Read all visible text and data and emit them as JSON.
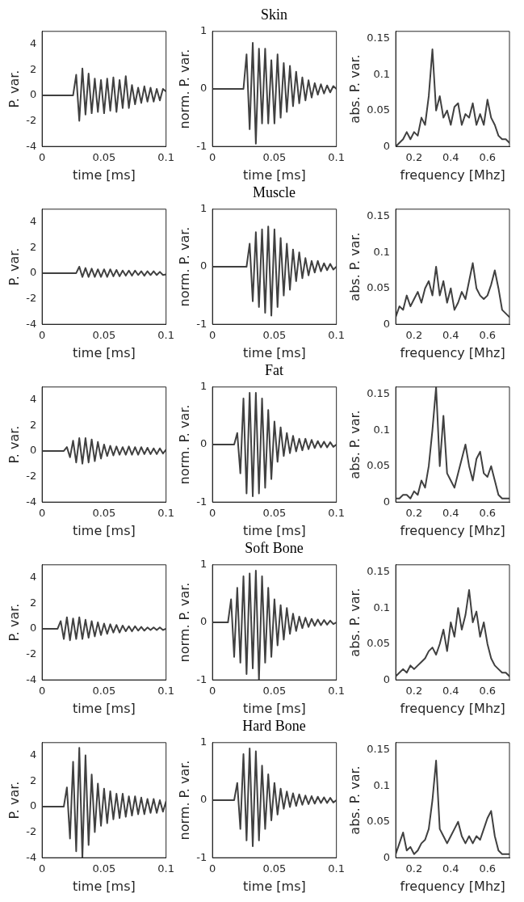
{
  "chart_data": [
    {
      "type": "line",
      "xlabel": "time [ms]",
      "ylabel": "P. var.",
      "xlim": [
        0,
        0.1
      ],
      "ylim": [
        -4,
        5
      ],
      "xticks": [
        0,
        0.05,
        0.1
      ],
      "yticks": [
        -4,
        -2,
        0,
        2,
        4
      ],
      "grid": false,
      "legend": false,
      "marker": "none",
      "x": [
        0,
        0.0125,
        0.015,
        0.0175,
        0.02,
        0.0225,
        0.025,
        0.0275,
        0.03,
        0.0325,
        0.035,
        0.0375,
        0.04,
        0.0425,
        0.045,
        0.0475,
        0.05,
        0.0525,
        0.055,
        0.0575,
        0.06,
        0.0625,
        0.065,
        0.0675,
        0.07,
        0.0725,
        0.075,
        0.0775,
        0.08,
        0.0825,
        0.085,
        0.0875,
        0.09,
        0.0925,
        0.095,
        0.0975,
        0.1
      ],
      "series": [
        {
          "color": "#404040",
          "values": [
            0,
            0,
            0,
            0,
            0,
            0,
            0,
            1.6,
            -2.0,
            2.1,
            -1.5,
            1.7,
            -1.4,
            1.3,
            -1.3,
            1.2,
            -1.4,
            1.3,
            -1.2,
            1.4,
            -1.3,
            1.2,
            -1.0,
            1.5,
            -1.0,
            0.8,
            -0.7,
            0.6,
            -0.6,
            0.7,
            -0.5,
            0.6,
            -0.5,
            0.5,
            -0.4,
            0.5,
            0.3
          ]
        }
      ]
    },
    {
      "type": "line",
      "title": "Skin",
      "xlabel": "time [ms]",
      "ylabel": "norm. P. var.",
      "xlim": [
        0,
        0.1
      ],
      "ylim": [
        -1,
        1
      ],
      "xticks": [
        0,
        0.05,
        0.1
      ],
      "yticks": [
        -1,
        0,
        1
      ],
      "grid": false,
      "legend": false,
      "marker": "none",
      "x": [
        0,
        0.0125,
        0.015,
        0.0175,
        0.02,
        0.0225,
        0.025,
        0.0275,
        0.03,
        0.0325,
        0.035,
        0.0375,
        0.04,
        0.0425,
        0.045,
        0.0475,
        0.05,
        0.0525,
        0.055,
        0.0575,
        0.06,
        0.0625,
        0.065,
        0.0675,
        0.07,
        0.0725,
        0.075,
        0.0775,
        0.08,
        0.0825,
        0.085,
        0.0875,
        0.09,
        0.0925,
        0.095,
        0.0975,
        0.1
      ],
      "series": [
        {
          "color": "#404040",
          "values": [
            0,
            0,
            0,
            0,
            0,
            0,
            0,
            0.6,
            -0.7,
            0.8,
            -0.95,
            0.7,
            -0.6,
            0.7,
            -0.6,
            0.5,
            -0.6,
            0.6,
            -0.5,
            0.45,
            -0.4,
            0.4,
            -0.3,
            0.3,
            -0.25,
            0.2,
            -0.2,
            0.15,
            -0.15,
            0.1,
            -0.1,
            0.08,
            -0.08,
            0.06,
            -0.06,
            0.05,
            0
          ]
        }
      ]
    },
    {
      "type": "line",
      "xlabel": "frequency [Mhz]",
      "ylabel": "abs. P. var.",
      "xlim": [
        0.1,
        0.72
      ],
      "ylim": [
        0,
        0.16
      ],
      "xticks": [
        0.2,
        0.4,
        0.6
      ],
      "yticks": [
        0,
        0.05,
        0.1,
        0.15
      ],
      "grid": false,
      "legend": false,
      "marker": "none",
      "x": [
        0.1,
        0.12,
        0.14,
        0.16,
        0.18,
        0.2,
        0.22,
        0.24,
        0.26,
        0.28,
        0.3,
        0.32,
        0.34,
        0.36,
        0.38,
        0.4,
        0.42,
        0.44,
        0.46,
        0.48,
        0.5,
        0.52,
        0.54,
        0.56,
        0.58,
        0.6,
        0.62,
        0.64,
        0.66,
        0.68,
        0.7,
        0.72
      ],
      "series": [
        {
          "color": "#404040",
          "values": [
            0,
            0.005,
            0.01,
            0.02,
            0.01,
            0.02,
            0.015,
            0.04,
            0.03,
            0.07,
            0.135,
            0.05,
            0.07,
            0.04,
            0.05,
            0.03,
            0.055,
            0.06,
            0.03,
            0.045,
            0.04,
            0.06,
            0.03,
            0.045,
            0.03,
            0.065,
            0.04,
            0.03,
            0.015,
            0.01,
            0.01,
            0.005
          ]
        }
      ]
    },
    {
      "type": "line",
      "xlabel": "time [ms]",
      "ylabel": "P. var.",
      "xlim": [
        0,
        0.1
      ],
      "ylim": [
        -4,
        5
      ],
      "xticks": [
        0,
        0.05,
        0.1
      ],
      "yticks": [
        -4,
        -2,
        0,
        2,
        4
      ],
      "grid": false,
      "legend": false,
      "marker": "none",
      "x": [
        0,
        0.0125,
        0.015,
        0.0175,
        0.02,
        0.0225,
        0.025,
        0.0275,
        0.03,
        0.0325,
        0.035,
        0.0375,
        0.04,
        0.0425,
        0.045,
        0.0475,
        0.05,
        0.0525,
        0.055,
        0.0575,
        0.06,
        0.0625,
        0.065,
        0.0675,
        0.07,
        0.0725,
        0.075,
        0.0775,
        0.08,
        0.0825,
        0.085,
        0.0875,
        0.09,
        0.0925,
        0.095,
        0.0975,
        0.1
      ],
      "series": [
        {
          "color": "#404040",
          "values": [
            0,
            0,
            0,
            0,
            0,
            0,
            0,
            0,
            0.5,
            -0.3,
            0.4,
            -0.3,
            0.35,
            -0.3,
            0.3,
            -0.3,
            0.3,
            -0.3,
            0.3,
            -0.25,
            0.25,
            -0.25,
            0.2,
            -0.2,
            0.2,
            -0.2,
            0.2,
            -0.15,
            0.15,
            -0.2,
            0.15,
            -0.15,
            0.15,
            -0.15,
            0.1,
            -0.15,
            -0.1
          ]
        }
      ]
    },
    {
      "type": "line",
      "title": "Muscle",
      "xlabel": "time [ms]",
      "ylabel": "norm. P. var.",
      "xlim": [
        0,
        0.1
      ],
      "ylim": [
        -1,
        1
      ],
      "xticks": [
        0,
        0.05,
        0.1
      ],
      "yticks": [
        -1,
        0,
        1
      ],
      "grid": false,
      "legend": false,
      "marker": "none",
      "x": [
        0,
        0.0125,
        0.015,
        0.0175,
        0.02,
        0.0225,
        0.025,
        0.0275,
        0.03,
        0.0325,
        0.035,
        0.0375,
        0.04,
        0.0425,
        0.045,
        0.0475,
        0.05,
        0.0525,
        0.055,
        0.0575,
        0.06,
        0.0625,
        0.065,
        0.0675,
        0.07,
        0.0725,
        0.075,
        0.0775,
        0.08,
        0.0825,
        0.085,
        0.0875,
        0.09,
        0.0925,
        0.095,
        0.0975,
        0.1
      ],
      "series": [
        {
          "color": "#404040",
          "values": [
            0,
            0,
            0,
            0,
            0,
            0,
            0,
            0,
            0.4,
            -0.6,
            0.6,
            -0.7,
            0.65,
            -0.8,
            0.7,
            -0.85,
            0.65,
            -0.7,
            0.5,
            -0.5,
            0.4,
            -0.4,
            0.3,
            -0.25,
            0.25,
            -0.2,
            0.15,
            -0.15,
            0.1,
            -0.1,
            0.1,
            -0.08,
            0.06,
            -0.06,
            0.05,
            -0.05,
            0
          ]
        }
      ]
    },
    {
      "type": "line",
      "xlabel": "frequency [Mhz]",
      "ylabel": "abs. P. var.",
      "xlim": [
        0.1,
        0.72
      ],
      "ylim": [
        0,
        0.16
      ],
      "xticks": [
        0.2,
        0.4,
        0.6
      ],
      "yticks": [
        0,
        0.05,
        0.1,
        0.15
      ],
      "grid": false,
      "legend": false,
      "marker": "none",
      "x": [
        0.1,
        0.12,
        0.14,
        0.16,
        0.18,
        0.2,
        0.22,
        0.24,
        0.26,
        0.28,
        0.3,
        0.32,
        0.34,
        0.36,
        0.38,
        0.4,
        0.42,
        0.44,
        0.46,
        0.48,
        0.5,
        0.52,
        0.54,
        0.56,
        0.58,
        0.6,
        0.62,
        0.64,
        0.66,
        0.68,
        0.7,
        0.72
      ],
      "series": [
        {
          "color": "#404040",
          "values": [
            0.01,
            0.025,
            0.02,
            0.04,
            0.025,
            0.035,
            0.045,
            0.03,
            0.05,
            0.06,
            0.04,
            0.08,
            0.04,
            0.06,
            0.03,
            0.05,
            0.02,
            0.03,
            0.045,
            0.035,
            0.06,
            0.085,
            0.05,
            0.04,
            0.035,
            0.04,
            0.055,
            0.075,
            0.05,
            0.02,
            0.015,
            0.01
          ]
        }
      ]
    },
    {
      "type": "line",
      "xlabel": "time [ms]",
      "ylabel": "P. var.",
      "xlim": [
        0,
        0.1
      ],
      "ylim": [
        -4,
        5
      ],
      "xticks": [
        0,
        0.05,
        0.1
      ],
      "yticks": [
        -4,
        -2,
        0,
        2,
        4
      ],
      "grid": false,
      "legend": false,
      "marker": "none",
      "x": [
        0,
        0.0125,
        0.015,
        0.0175,
        0.02,
        0.0225,
        0.025,
        0.0275,
        0.03,
        0.0325,
        0.035,
        0.0375,
        0.04,
        0.0425,
        0.045,
        0.0475,
        0.05,
        0.0525,
        0.055,
        0.0575,
        0.06,
        0.0625,
        0.065,
        0.0675,
        0.07,
        0.0725,
        0.075,
        0.0775,
        0.08,
        0.0825,
        0.085,
        0.0875,
        0.09,
        0.0925,
        0.095,
        0.0975,
        0.1
      ],
      "series": [
        {
          "color": "#404040",
          "values": [
            0,
            0,
            0,
            0,
            0.3,
            -0.5,
            0.8,
            -0.9,
            1.0,
            -1.0,
            1.0,
            -0.9,
            0.9,
            -0.8,
            0.7,
            -0.6,
            0.5,
            -0.4,
            0.4,
            -0.35,
            0.35,
            -0.3,
            0.3,
            -0.3,
            0.35,
            -0.3,
            0.3,
            -0.3,
            0.3,
            -0.25,
            0.25,
            -0.25,
            0.2,
            -0.25,
            0.2,
            -0.2,
            0.1
          ]
        }
      ]
    },
    {
      "type": "line",
      "title": "Fat",
      "xlabel": "time [ms]",
      "ylabel": "norm. P. var.",
      "xlim": [
        0,
        0.1
      ],
      "ylim": [
        -1,
        1
      ],
      "xticks": [
        0,
        0.05,
        0.1
      ],
      "yticks": [
        -1,
        0,
        1
      ],
      "grid": false,
      "legend": false,
      "marker": "none",
      "x": [
        0,
        0.0125,
        0.015,
        0.0175,
        0.02,
        0.0225,
        0.025,
        0.0275,
        0.03,
        0.0325,
        0.035,
        0.0375,
        0.04,
        0.0425,
        0.045,
        0.0475,
        0.05,
        0.0525,
        0.055,
        0.0575,
        0.06,
        0.0625,
        0.065,
        0.0675,
        0.07,
        0.0725,
        0.075,
        0.0775,
        0.08,
        0.0825,
        0.085,
        0.0875,
        0.09,
        0.0925,
        0.095,
        0.0975,
        0.1
      ],
      "series": [
        {
          "color": "#404040",
          "values": [
            0,
            0,
            0,
            0,
            0.2,
            -0.5,
            0.8,
            -0.85,
            0.9,
            -0.9,
            0.9,
            -0.85,
            0.8,
            -0.75,
            0.6,
            -0.6,
            0.4,
            -0.3,
            0.3,
            -0.2,
            0.2,
            -0.15,
            0.15,
            -0.12,
            0.1,
            -0.1,
            0.1,
            -0.08,
            0.08,
            -0.06,
            0.06,
            -0.05,
            0.05,
            -0.05,
            0.04,
            -0.04,
            0
          ]
        }
      ]
    },
    {
      "type": "line",
      "xlabel": "frequency [Mhz]",
      "ylabel": "abs. P. var.",
      "xlim": [
        0.1,
        0.72
      ],
      "ylim": [
        0,
        0.16
      ],
      "xticks": [
        0.2,
        0.4,
        0.6
      ],
      "yticks": [
        0,
        0.05,
        0.1,
        0.15
      ],
      "grid": false,
      "legend": false,
      "marker": "none",
      "x": [
        0.1,
        0.12,
        0.14,
        0.16,
        0.18,
        0.2,
        0.22,
        0.24,
        0.26,
        0.28,
        0.3,
        0.32,
        0.34,
        0.36,
        0.38,
        0.4,
        0.42,
        0.44,
        0.46,
        0.48,
        0.5,
        0.52,
        0.54,
        0.56,
        0.58,
        0.6,
        0.62,
        0.64,
        0.66,
        0.68,
        0.7,
        0.72
      ],
      "series": [
        {
          "color": "#404040",
          "values": [
            0.005,
            0.005,
            0.01,
            0.01,
            0.005,
            0.015,
            0.01,
            0.03,
            0.02,
            0.05,
            0.1,
            0.16,
            0.05,
            0.12,
            0.04,
            0.03,
            0.02,
            0.04,
            0.06,
            0.08,
            0.05,
            0.03,
            0.06,
            0.07,
            0.04,
            0.035,
            0.05,
            0.03,
            0.01,
            0.005,
            0.005,
            0.005
          ]
        }
      ]
    },
    {
      "type": "line",
      "xlabel": "time [ms]",
      "ylabel": "P. var.",
      "xlim": [
        0,
        0.1
      ],
      "ylim": [
        -4,
        5
      ],
      "xticks": [
        0,
        0.05,
        0.1
      ],
      "yticks": [
        -4,
        -2,
        0,
        2,
        4
      ],
      "grid": false,
      "legend": false,
      "marker": "none",
      "x": [
        0,
        0.0125,
        0.015,
        0.0175,
        0.02,
        0.0225,
        0.025,
        0.0275,
        0.03,
        0.0325,
        0.035,
        0.0375,
        0.04,
        0.0425,
        0.045,
        0.0475,
        0.05,
        0.0525,
        0.055,
        0.0575,
        0.06,
        0.0625,
        0.065,
        0.0675,
        0.07,
        0.0725,
        0.075,
        0.0775,
        0.08,
        0.0825,
        0.085,
        0.0875,
        0.09,
        0.0925,
        0.095,
        0.0975,
        0.1
      ],
      "series": [
        {
          "color": "#404040",
          "values": [
            0,
            0,
            0.6,
            -0.8,
            0.9,
            -0.9,
            0.8,
            -0.8,
            0.9,
            -0.8,
            0.7,
            -0.7,
            0.6,
            -0.6,
            0.5,
            -0.5,
            0.4,
            -0.4,
            0.35,
            -0.3,
            0.3,
            -0.3,
            0.25,
            -0.2,
            0.2,
            -0.2,
            0.2,
            -0.15,
            0.15,
            -0.15,
            0.1,
            -0.1,
            0.1,
            -0.1,
            0.1,
            -0.1,
            0
          ]
        }
      ]
    },
    {
      "type": "line",
      "title": "Soft Bone",
      "xlabel": "time [ms]",
      "ylabel": "norm. P. var.",
      "xlim": [
        0,
        0.1
      ],
      "ylim": [
        -1,
        1
      ],
      "xticks": [
        0,
        0.05,
        0.1
      ],
      "yticks": [
        -1,
        0,
        1
      ],
      "grid": false,
      "legend": false,
      "marker": "none",
      "x": [
        0,
        0.0125,
        0.015,
        0.0175,
        0.02,
        0.0225,
        0.025,
        0.0275,
        0.03,
        0.0325,
        0.035,
        0.0375,
        0.04,
        0.0425,
        0.045,
        0.0475,
        0.05,
        0.0525,
        0.055,
        0.0575,
        0.06,
        0.0625,
        0.065,
        0.0675,
        0.07,
        0.0725,
        0.075,
        0.0775,
        0.08,
        0.0825,
        0.085,
        0.0875,
        0.09,
        0.0925,
        0.095,
        0.0975,
        0.1
      ],
      "series": [
        {
          "color": "#404040",
          "values": [
            0,
            0,
            0.4,
            -0.6,
            0.6,
            -0.7,
            0.8,
            -0.9,
            0.85,
            -0.8,
            0.9,
            -1.0,
            0.8,
            -0.7,
            0.6,
            -0.6,
            0.4,
            -0.4,
            0.3,
            -0.3,
            0.25,
            -0.2,
            0.15,
            -0.15,
            0.1,
            -0.1,
            0.08,
            -0.08,
            0.06,
            -0.06,
            0.05,
            -0.05,
            0.04,
            -0.04,
            0.03,
            -0.03,
            0
          ]
        }
      ]
    },
    {
      "type": "line",
      "xlabel": "frequency [Mhz]",
      "ylabel": "abs. P. var.",
      "xlim": [
        0.1,
        0.72
      ],
      "ylim": [
        0,
        0.16
      ],
      "xticks": [
        0.2,
        0.4,
        0.6
      ],
      "yticks": [
        0,
        0.05,
        0.1,
        0.15
      ],
      "grid": false,
      "legend": false,
      "marker": "none",
      "x": [
        0.1,
        0.12,
        0.14,
        0.16,
        0.18,
        0.2,
        0.22,
        0.24,
        0.26,
        0.28,
        0.3,
        0.32,
        0.34,
        0.36,
        0.38,
        0.4,
        0.42,
        0.44,
        0.46,
        0.48,
        0.5,
        0.52,
        0.54,
        0.56,
        0.58,
        0.6,
        0.62,
        0.64,
        0.66,
        0.68,
        0.7,
        0.72
      ],
      "series": [
        {
          "color": "#404040",
          "values": [
            0.005,
            0.01,
            0.015,
            0.01,
            0.02,
            0.015,
            0.02,
            0.025,
            0.03,
            0.04,
            0.045,
            0.035,
            0.05,
            0.07,
            0.04,
            0.08,
            0.06,
            0.1,
            0.07,
            0.09,
            0.125,
            0.08,
            0.095,
            0.06,
            0.08,
            0.05,
            0.03,
            0.02,
            0.015,
            0.01,
            0.01,
            0.005
          ]
        }
      ]
    },
    {
      "type": "line",
      "xlabel": "time [ms]",
      "ylabel": "P. var.",
      "xlim": [
        0,
        0.1
      ],
      "ylim": [
        -4,
        5
      ],
      "xticks": [
        0,
        0.05,
        0.1
      ],
      "yticks": [
        -4,
        -2,
        0,
        2,
        4
      ],
      "grid": false,
      "legend": false,
      "marker": "none",
      "x": [
        0,
        0.0125,
        0.015,
        0.0175,
        0.02,
        0.0225,
        0.025,
        0.0275,
        0.03,
        0.0325,
        0.035,
        0.0375,
        0.04,
        0.0425,
        0.045,
        0.0475,
        0.05,
        0.0525,
        0.055,
        0.0575,
        0.06,
        0.0625,
        0.065,
        0.0675,
        0.07,
        0.0725,
        0.075,
        0.0775,
        0.08,
        0.0825,
        0.085,
        0.0875,
        0.09,
        0.0925,
        0.095,
        0.0975,
        0.1
      ],
      "series": [
        {
          "color": "#404040",
          "values": [
            0,
            0,
            0,
            0,
            1.5,
            -2.5,
            3.5,
            -3.5,
            4.6,
            -4.0,
            4.0,
            -3.0,
            2.5,
            -2.0,
            1.8,
            -1.5,
            1.4,
            -1.3,
            1.2,
            -1.0,
            1.0,
            -0.9,
            1.0,
            -0.8,
            0.8,
            -0.7,
            0.8,
            -0.6,
            0.7,
            -0.6,
            0.6,
            -0.5,
            0.6,
            -0.5,
            0.5,
            -0.4,
            0.4
          ]
        }
      ]
    },
    {
      "type": "line",
      "title": "Hard Bone",
      "xlabel": "time [ms]",
      "ylabel": "norm. P. var.",
      "xlim": [
        0,
        0.1
      ],
      "ylim": [
        -1,
        1
      ],
      "xticks": [
        0,
        0.05,
        0.1
      ],
      "yticks": [
        -1,
        0,
        1
      ],
      "grid": false,
      "legend": false,
      "marker": "none",
      "x": [
        0,
        0.0125,
        0.015,
        0.0175,
        0.02,
        0.0225,
        0.025,
        0.0275,
        0.03,
        0.0325,
        0.035,
        0.0375,
        0.04,
        0.0425,
        0.045,
        0.0475,
        0.05,
        0.0525,
        0.055,
        0.0575,
        0.06,
        0.0625,
        0.065,
        0.0675,
        0.07,
        0.0725,
        0.075,
        0.0775,
        0.08,
        0.0825,
        0.085,
        0.0875,
        0.09,
        0.0925,
        0.095,
        0.0975,
        0.1
      ],
      "series": [
        {
          "color": "#404040",
          "values": [
            0,
            0,
            0,
            0,
            0.3,
            -0.5,
            0.8,
            -0.7,
            0.9,
            -0.8,
            0.85,
            -0.7,
            0.6,
            -0.5,
            0.45,
            -0.35,
            0.3,
            -0.25,
            0.2,
            -0.15,
            0.15,
            -0.12,
            0.12,
            -0.1,
            0.1,
            -0.08,
            0.08,
            -0.07,
            0.07,
            -0.06,
            0.06,
            -0.05,
            0.05,
            -0.05,
            0.04,
            -0.04,
            0
          ]
        }
      ]
    },
    {
      "type": "line",
      "xlabel": "frequency [Mhz]",
      "ylabel": "abs. P. var.",
      "xlim": [
        0.1,
        0.72
      ],
      "ylim": [
        0,
        0.16
      ],
      "xticks": [
        0.2,
        0.4,
        0.6
      ],
      "yticks": [
        0,
        0.05,
        0.1,
        0.15
      ],
      "grid": false,
      "legend": false,
      "marker": "none",
      "x": [
        0.1,
        0.12,
        0.14,
        0.16,
        0.18,
        0.2,
        0.22,
        0.24,
        0.26,
        0.28,
        0.3,
        0.32,
        0.34,
        0.36,
        0.38,
        0.4,
        0.42,
        0.44,
        0.46,
        0.48,
        0.5,
        0.52,
        0.54,
        0.56,
        0.58,
        0.6,
        0.62,
        0.64,
        0.66,
        0.68,
        0.7,
        0.72
      ],
      "series": [
        {
          "color": "#404040",
          "values": [
            0.005,
            0.02,
            0.035,
            0.01,
            0.015,
            0.005,
            0.01,
            0.02,
            0.025,
            0.04,
            0.08,
            0.135,
            0.04,
            0.03,
            0.02,
            0.03,
            0.04,
            0.05,
            0.03,
            0.02,
            0.03,
            0.02,
            0.03,
            0.025,
            0.04,
            0.055,
            0.065,
            0.03,
            0.01,
            0.005,
            0.005,
            0.005
          ]
        }
      ]
    }
  ]
}
